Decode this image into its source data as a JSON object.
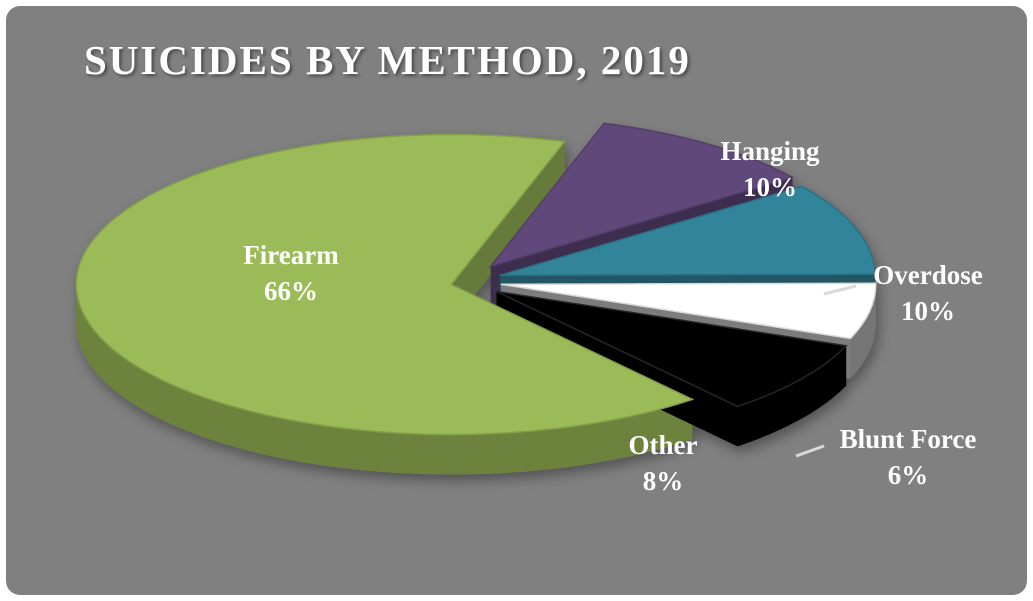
{
  "chart_data": {
    "type": "pie",
    "title": "SUICIDES BY METHOD, 2019",
    "slices": [
      {
        "label": "Firearm",
        "value": 66,
        "value_label": "66%",
        "color": "#9BBB59"
      },
      {
        "label": "Hanging",
        "value": 10,
        "value_label": "10%",
        "color": "#60497A"
      },
      {
        "label": "Overdose",
        "value": 10,
        "value_label": "10%",
        "color": "#31849B"
      },
      {
        "label": "Blunt Force",
        "value": 6,
        "value_label": "6%",
        "color": "#FFFFFF"
      },
      {
        "label": "Other",
        "value": 8,
        "value_label": "8%",
        "color": "#000000"
      }
    ],
    "style": "3d-exploded",
    "background": "#808080"
  }
}
